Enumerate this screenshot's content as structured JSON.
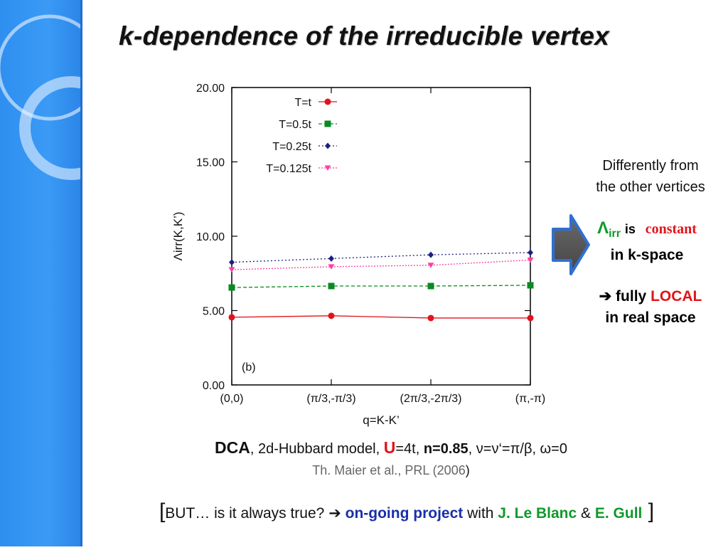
{
  "title": "k-dependence of the irreducible vertex",
  "colors": {
    "red": "#e0141a",
    "green": "#0f9a2a",
    "blue": "#1a2fa8",
    "sidebar": "#3a9af5"
  },
  "chart_data": {
    "type": "line",
    "categories": [
      "(0,0)",
      "(π/3,-π/3)",
      "(2π/3,-2π/3)",
      "(π,-π)"
    ],
    "xlabel": "q=K-K’",
    "ylabel": "Λirr(K,K’)",
    "ylim": [
      0,
      20
    ],
    "yticks": [
      "0.00",
      "5.00",
      "10.00",
      "15.00",
      "20.00"
    ],
    "panel_label": "(b)",
    "legend_position": "top-left",
    "series": [
      {
        "name": "T=t",
        "color": "#e0141a",
        "marker": "circle",
        "values": [
          4.55,
          4.65,
          4.5,
          4.5
        ]
      },
      {
        "name": "T=0.5t",
        "color": "#0a8a22",
        "marker": "square",
        "values": [
          6.55,
          6.65,
          6.65,
          6.7
        ]
      },
      {
        "name": "T=0.25t",
        "color": "#1c1f80",
        "marker": "diamond",
        "values": [
          8.25,
          8.5,
          8.75,
          8.9
        ]
      },
      {
        "name": "T=0.125t",
        "color": "#ff3fa0",
        "marker": "triangle-down",
        "values": [
          7.75,
          7.95,
          8.05,
          8.4
        ]
      }
    ]
  },
  "side": {
    "line1": "Differently from",
    "line2": "the other vertices",
    "lambda_symbol": "Λ",
    "lambda_sub": "irr",
    "is": "is",
    "constant": "constant",
    "kspace": "in k-space",
    "arrow_glyph": "➔",
    "fully": "fully",
    "local": "LOCAL",
    "realspace": "in real space"
  },
  "caption": {
    "dca": "DCA",
    "model": ",  2d-Hubbard model, ",
    "u": "U",
    "u_val": "=4t, ",
    "n": "n=0.85",
    "rest": ", ν=ν‘=π/β, ω=0",
    "ref": "Th. Maier et al.,  PRL (2006",
    "ref_close": ")"
  },
  "bottom": {
    "open": "[",
    "text1": "BUT…  is it always true? ",
    "arrow": "➔",
    "ongoing": " on-going project",
    "with": " with ",
    "name1": "J. Le Blanc",
    "amp": " & ",
    "name2": "E. Gull",
    "close": " ]"
  }
}
